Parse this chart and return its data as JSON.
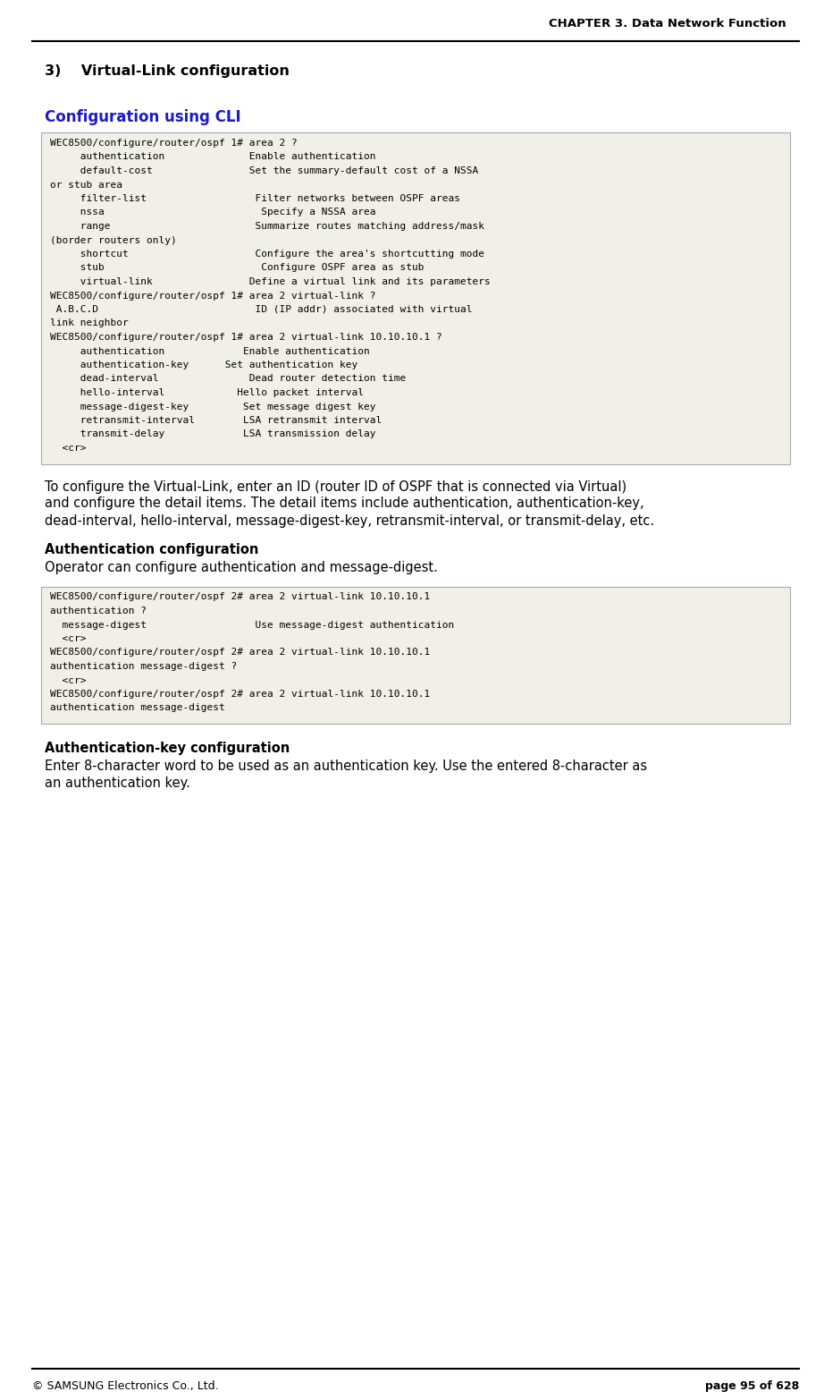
{
  "page_title": "CHAPTER 3. Data Network Function",
  "footer_left": "© SAMSUNG Electronics Co., Ltd.",
  "footer_right": "page 95 of 628",
  "section_number": "3)",
  "section_title": "Virtual-Link configuration",
  "subsection1_title": "Configuration using CLI",
  "subsection1_color": "#1a1acc",
  "code_block1_lines": [
    "WEC8500/configure/router/ospf 1# area 2 ?",
    "     authentication              Enable authentication",
    "     default-cost                Set the summary-default cost of a NSSA",
    "or stub area",
    "     filter-list                  Filter networks between OSPF areas",
    "     nssa                          Specify a NSSA area",
    "     range                        Summarize routes matching address/mask",
    "(border routers only)",
    "     shortcut                     Configure the area's shortcutting mode",
    "     stub                          Configure OSPF area as stub",
    "     virtual-link                Define a virtual link and its parameters",
    "WEC8500/configure/router/ospf 1# area 2 virtual-link ?",
    " A.B.C.D                          ID (IP addr) associated with virtual",
    "link neighbor",
    "WEC8500/configure/router/ospf 1# area 2 virtual-link 10.10.10.1 ?",
    "     authentication             Enable authentication",
    "     authentication-key      Set authentication key",
    "     dead-interval               Dead router detection time",
    "     hello-interval            Hello packet interval",
    "     message-digest-key         Set message digest key",
    "     retransmit-interval        LSA retransmit interval",
    "     transmit-delay             LSA transmission delay",
    "  <cr>"
  ],
  "para1_lines": [
    "To configure the Virtual-Link, enter an ID (router ID of OSPF that is connected via Virtual)",
    "and configure the detail items. The detail items include authentication, authentication-key,",
    "dead-interval, hello-interval, message-digest-key, retransmit-interval, or transmit-delay, etc."
  ],
  "subsection2_title": "Authentication configuration",
  "para2": "Operator can configure authentication and message-digest.",
  "code_block2_lines": [
    "WEC8500/configure/router/ospf 2# area 2 virtual-link 10.10.10.1",
    "authentication ?",
    "  message-digest                  Use message-digest authentication",
    "  <cr>",
    "WEC8500/configure/router/ospf 2# area 2 virtual-link 10.10.10.1",
    "authentication message-digest ?",
    "  <cr>",
    "WEC8500/configure/router/ospf 2# area 2 virtual-link 10.10.10.1",
    "authentication message-digest"
  ],
  "subsection3_title": "Authentication-key configuration",
  "para3_lines": [
    "Enter 8-character word to be used as an authentication key. Use the entered 8-character as",
    "an authentication key."
  ],
  "bg_color": "#ffffff",
  "code_bg": "#f0f0e8",
  "code_border": "#aaaaaa",
  "text_color": "#000000",
  "blue_color": "#1a1acc"
}
